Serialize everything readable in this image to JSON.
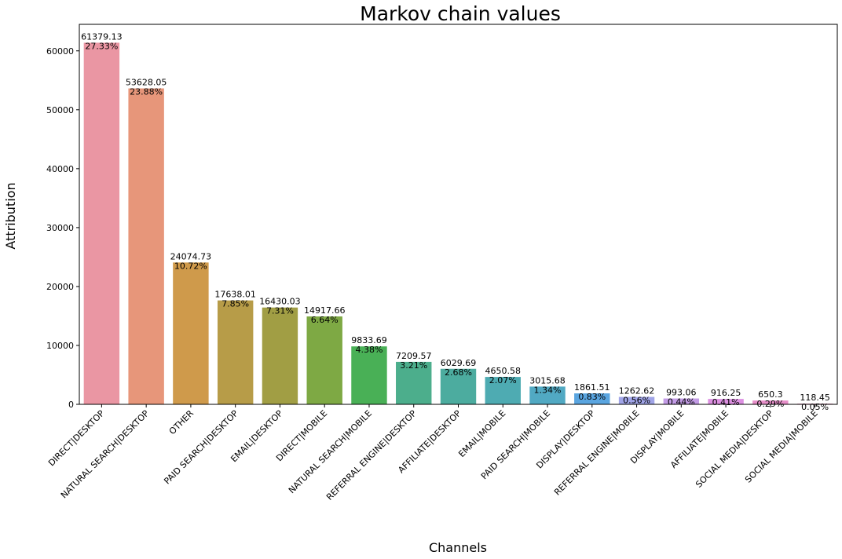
{
  "chart_data": {
    "type": "bar",
    "title": "Markov chain values",
    "xlabel": "Channels",
    "ylabel": "Attribution",
    "ylim": [
      0,
      64500
    ],
    "yticks": [
      0,
      10000,
      20000,
      30000,
      40000,
      50000,
      60000
    ],
    "grid": false,
    "categories": [
      "DIRECT|DESKTOP",
      "NATURAL SEARCH|DESKTOP",
      "OTHER",
      "PAID SEARCH|DESKTOP",
      "EMAIL|DESKTOP",
      "DIRECT|MOBILE",
      "NATURAL SEARCH|MOBILE",
      "REFERRAL ENGINE|DESKTOP",
      "AFFILIATE|DESKTOP",
      "EMAIL|MOBILE",
      "PAID SEARCH|MOBILE",
      "DISPLAY|DESKTOP",
      "REFERRAL ENGINE|MOBILE",
      "DISPLAY|MOBILE",
      "AFFILIATE|MOBILE",
      "SOCIAL MEDIA|DESKTOP",
      "SOCIAL MEDIA|MOBILE"
    ],
    "values": [
      61379.13,
      53628.05,
      24074.73,
      17638.01,
      16430.03,
      14917.66,
      9833.69,
      7209.57,
      6029.69,
      4650.58,
      3015.68,
      1861.51,
      1262.62,
      993.06,
      916.25,
      650.3,
      118.45
    ],
    "value_labels": [
      "61379.13",
      "53628.05",
      "24074.73",
      "17638.01",
      "16430.03",
      "14917.66",
      "9833.69",
      "7209.57",
      "6029.69",
      "4650.58",
      "3015.68",
      "1861.51",
      "1262.62",
      "993.06",
      "916.25",
      "650.3",
      "118.45"
    ],
    "percent_labels": [
      "27.33%",
      "23.88%",
      "10.72%",
      "7.85%",
      "7.31%",
      "6.64%",
      "4.38%",
      "3.21%",
      "2.68%",
      "2.07%",
      "1.34%",
      "0.83%",
      "0.56%",
      "0.44%",
      "0.41%",
      "0.29%",
      "0.05%"
    ],
    "colors": [
      "#ea96a3",
      "#e7967a",
      "#cf9a4b",
      "#b79c48",
      "#a19e44",
      "#7ea944",
      "#49b056",
      "#4cae8c",
      "#4cac9f",
      "#4eabb2",
      "#51a9c3",
      "#5aa5e0",
      "#a1a5e8",
      "#c39ce6",
      "#dd90e2",
      "#e78ec9",
      "#e992b8"
    ]
  }
}
